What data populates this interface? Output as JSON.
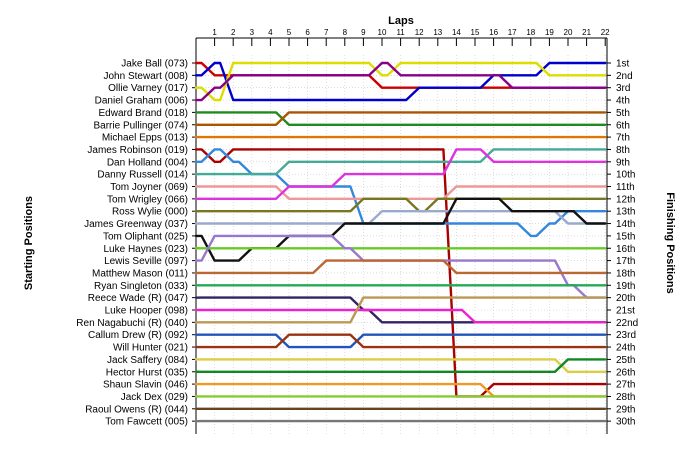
{
  "chart_data": {
    "type": "line",
    "title": "Laps",
    "ylabel_left": "Starting Positions",
    "ylabel_right": "Finishing Positions",
    "x": [
      0,
      1,
      2,
      3,
      4,
      5,
      6,
      7,
      8,
      9,
      10,
      11,
      12,
      13,
      14,
      15,
      16,
      17,
      18,
      19,
      20,
      21,
      22
    ],
    "x_tick_labels": [
      "1",
      "2",
      "3",
      "4",
      "5",
      "6",
      "7",
      "8",
      "9",
      "10",
      "11",
      "12",
      "13",
      "14",
      "15",
      "16",
      "17",
      "18",
      "19",
      "20",
      "21",
      "22"
    ],
    "finishing_labels": [
      "1st",
      "2nd",
      "3rd",
      "4th",
      "5th",
      "6th",
      "7th",
      "8th",
      "9th",
      "10th",
      "11th",
      "12th",
      "13th",
      "14th",
      "15th",
      "16th",
      "17th",
      "18th",
      "19th",
      "20th",
      "21st",
      "22nd",
      "23rd",
      "24th",
      "25th",
      "26th",
      "27th",
      "28th",
      "29th",
      "30th"
    ],
    "grid": true,
    "series": [
      {
        "name": "Jake Ball (073)",
        "color": "#cc0000",
        "values": [
          1,
          2,
          2,
          2,
          2,
          2,
          2,
          2,
          2,
          2,
          3,
          3,
          3,
          3,
          3,
          3,
          3,
          3,
          3,
          3,
          3,
          3,
          3
        ]
      },
      {
        "name": "John Stewart (008)",
        "color": "#0000cc",
        "values": [
          2,
          1,
          4,
          4,
          4,
          4,
          4,
          4,
          4,
          4,
          4,
          4,
          3,
          3,
          3,
          3,
          2,
          2,
          2,
          1,
          1,
          1,
          1
        ]
      },
      {
        "name": "Ollie Varney (017)",
        "color": "#dddd00",
        "values": [
          3,
          4,
          1,
          1,
          1,
          1,
          1,
          1,
          1,
          1,
          2,
          1,
          1,
          1,
          1,
          1,
          1,
          1,
          1,
          2,
          2,
          2,
          2
        ]
      },
      {
        "name": "Daniel Graham (006)",
        "color": "#880088",
        "values": [
          4,
          3,
          2,
          2,
          2,
          2,
          2,
          2,
          2,
          2,
          1,
          2,
          2,
          2,
          2,
          2,
          2,
          3,
          3,
          3,
          3,
          3,
          3
        ]
      },
      {
        "name": "Edward Brand (018)",
        "color": "#228822",
        "values": [
          5,
          5,
          5,
          5,
          5,
          6,
          6,
          6,
          6,
          6,
          6,
          6,
          6,
          6,
          6,
          6,
          6,
          6,
          6,
          6,
          6,
          6,
          6
        ]
      },
      {
        "name": "Barrie Pullinger (074)",
        "color": "#aa5500",
        "values": [
          6,
          6,
          6,
          6,
          6,
          5,
          5,
          5,
          5,
          5,
          5,
          5,
          5,
          5,
          5,
          5,
          5,
          5,
          5,
          5,
          5,
          5,
          5
        ]
      },
      {
        "name": "Michael Epps (013)",
        "color": "#dd7700",
        "values": [
          7,
          7,
          7,
          7,
          7,
          7,
          7,
          7,
          7,
          7,
          7,
          7,
          7,
          7,
          7,
          7,
          7,
          7,
          7,
          7,
          7,
          7,
          7
        ]
      },
      {
        "name": "James Robinson (019)",
        "color": "#aa0000",
        "values": [
          8,
          9,
          8,
          8,
          8,
          8,
          8,
          8,
          8,
          8,
          8,
          8,
          8,
          8,
          28,
          28,
          27,
          27,
          27,
          27,
          27,
          27,
          27
        ]
      },
      {
        "name": "Dan Holland (004)",
        "color": "#3388dd",
        "values": [
          9,
          8,
          9,
          10,
          10,
          11,
          11,
          11,
          11,
          14,
          14,
          14,
          14,
          14,
          14,
          14,
          14,
          14,
          15,
          14,
          13,
          13,
          13
        ]
      },
      {
        "name": "Danny Russell (014)",
        "color": "#44aa99",
        "values": [
          10,
          10,
          10,
          10,
          10,
          9,
          9,
          9,
          9,
          9,
          9,
          9,
          9,
          9,
          9,
          9,
          8,
          8,
          8,
          8,
          8,
          8,
          8
        ]
      },
      {
        "name": "Tom Joyner (069)",
        "color": "#ee9999",
        "values": [
          11,
          11,
          11,
          11,
          11,
          12,
          12,
          12,
          12,
          12,
          12,
          12,
          12,
          12,
          11,
          11,
          11,
          11,
          11,
          11,
          11,
          11,
          11
        ]
      },
      {
        "name": "Tom Wrigley (066)",
        "color": "#dd33dd",
        "values": [
          12,
          12,
          12,
          12,
          12,
          11,
          11,
          11,
          10,
          10,
          10,
          10,
          10,
          10,
          8,
          8,
          9,
          9,
          9,
          9,
          9,
          9,
          9
        ]
      },
      {
        "name": "Ross Wylie (000)",
        "color": "#777722",
        "values": [
          13,
          13,
          13,
          13,
          13,
          13,
          13,
          13,
          13,
          12,
          12,
          12,
          13,
          12,
          12,
          12,
          12,
          12,
          12,
          12,
          12,
          12,
          12
        ]
      },
      {
        "name": "James Greenway (037)",
        "color": "#99aacc",
        "values": [
          14,
          14,
          14,
          14,
          14,
          14,
          14,
          14,
          14,
          14,
          13,
          13,
          13,
          13,
          13,
          13,
          13,
          13,
          13,
          13,
          14,
          14,
          14
        ]
      },
      {
        "name": "Tom Oliphant (025)",
        "color": "#111111",
        "values": [
          15,
          17,
          17,
          16,
          16,
          15,
          15,
          15,
          14,
          14,
          14,
          14,
          14,
          14,
          12,
          12,
          12,
          13,
          13,
          13,
          13,
          14,
          14
        ]
      },
      {
        "name": "Luke Haynes (023)",
        "color": "#66cc22",
        "values": [
          16,
          16,
          16,
          16,
          16,
          16,
          16,
          16,
          16,
          16,
          16,
          16,
          16,
          16,
          16,
          16,
          16,
          16,
          16,
          16,
          16,
          16,
          16
        ]
      },
      {
        "name": "Lewis Seville (097)",
        "color": "#9977cc",
        "values": [
          17,
          15,
          15,
          15,
          15,
          15,
          15,
          15,
          16,
          17,
          17,
          17,
          17,
          17,
          17,
          17,
          17,
          17,
          17,
          17,
          19,
          20,
          20
        ]
      },
      {
        "name": "Matthew Mason (011)",
        "color": "#bb6633",
        "values": [
          18,
          18,
          18,
          18,
          18,
          18,
          18,
          17,
          17,
          17,
          17,
          17,
          17,
          17,
          18,
          18,
          18,
          18,
          18,
          18,
          18,
          18,
          18
        ]
      },
      {
        "name": "Ryan Singleton (033)",
        "color": "#22aa55",
        "values": [
          19,
          19,
          19,
          19,
          19,
          19,
          19,
          19,
          19,
          19,
          19,
          19,
          19,
          19,
          19,
          19,
          19,
          19,
          19,
          19,
          19,
          19,
          19
        ]
      },
      {
        "name": "Reece Wade   (R) (047)",
        "color": "#332266",
        "values": [
          20,
          20,
          20,
          20,
          20,
          20,
          20,
          20,
          20,
          21,
          22,
          22,
          22,
          22,
          22,
          22,
          22,
          22,
          22,
          22,
          22,
          22,
          22
        ]
      },
      {
        "name": "Luke Hooper (098)",
        "color": "#ee22cc",
        "values": [
          21,
          21,
          21,
          21,
          21,
          21,
          21,
          21,
          21,
          21,
          21,
          21,
          21,
          21,
          21,
          22,
          22,
          22,
          22,
          22,
          22,
          22,
          22
        ]
      },
      {
        "name": "Ren Nagabuchi  (R) (040)",
        "color": "#bb9955",
        "values": [
          22,
          22,
          22,
          22,
          22,
          22,
          22,
          22,
          22,
          20,
          20,
          20,
          20,
          20,
          20,
          20,
          20,
          20,
          20,
          20,
          20,
          20,
          20
        ]
      },
      {
        "name": "Callum Drew (R) (092)",
        "color": "#2255bb",
        "values": [
          23,
          23,
          23,
          23,
          23,
          24,
          24,
          24,
          24,
          23,
          23,
          23,
          23,
          23,
          23,
          23,
          23,
          23,
          23,
          23,
          23,
          23,
          23
        ]
      },
      {
        "name": "Will Hunter (021)",
        "color": "#993311",
        "values": [
          24,
          24,
          24,
          24,
          24,
          23,
          23,
          23,
          23,
          24,
          24,
          24,
          24,
          24,
          24,
          24,
          24,
          24,
          24,
          24,
          24,
          24,
          24
        ]
      },
      {
        "name": "Jack Saffery (084)",
        "color": "#ddcc44",
        "values": [
          25,
          25,
          25,
          25,
          25,
          25,
          25,
          25,
          25,
          25,
          25,
          25,
          25,
          25,
          25,
          25,
          25,
          25,
          25,
          25,
          26,
          26,
          26
        ]
      },
      {
        "name": "Hector Hurst (035)",
        "color": "#118822",
        "values": [
          26,
          26,
          26,
          26,
          26,
          26,
          26,
          26,
          26,
          26,
          26,
          26,
          26,
          26,
          26,
          26,
          26,
          26,
          26,
          26,
          25,
          25,
          25
        ]
      },
      {
        "name": "Shaun Slavin (046)",
        "color": "#ee9922",
        "values": [
          27,
          27,
          27,
          27,
          27,
          27,
          27,
          27,
          27,
          27,
          27,
          27,
          27,
          27,
          27,
          27,
          28,
          28,
          28,
          28,
          28,
          28,
          28
        ]
      },
      {
        "name": "Jack Dex (029)",
        "color": "#88cc33",
        "values": [
          28,
          28,
          28,
          28,
          28,
          28,
          28,
          28,
          28,
          28,
          28,
          28,
          28,
          28,
          28,
          28,
          28,
          28,
          28,
          28,
          28,
          28,
          28
        ]
      },
      {
        "name": "Raoul Owens  (R) (044)",
        "color": "#664422",
        "values": [
          29,
          29,
          29,
          29,
          29,
          29,
          29,
          29,
          29,
          29,
          29,
          29,
          29,
          29,
          29,
          29,
          29,
          29,
          29,
          29,
          29,
          29,
          29
        ]
      },
      {
        "name": "Tom Fawcett (005)",
        "color": "#777777",
        "values": [
          30,
          30,
          30,
          30,
          30,
          30,
          30,
          30,
          30,
          30,
          30,
          30,
          30,
          30,
          30,
          30,
          30,
          30,
          30,
          30,
          30,
          30,
          30
        ]
      }
    ]
  }
}
